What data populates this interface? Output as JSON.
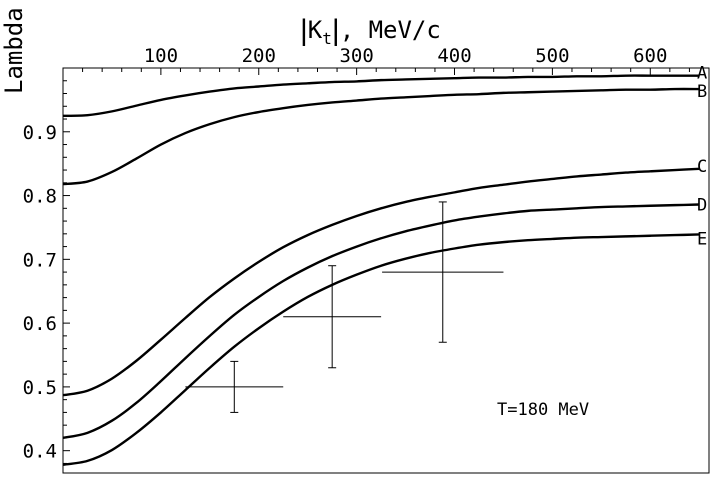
{
  "chart_data": {
    "type": "line",
    "title": "",
    "xlabel": "|K_t|, MeV/c",
    "xlabel_main": "K",
    "xlabel_sub": "t",
    "xlabel_suffix": ", MeV/c",
    "ylabel": "Lambda",
    "xlim": [
      0,
      660
    ],
    "ylim": [
      0.365,
      1.0
    ],
    "xticks": [
      100,
      200,
      300,
      400,
      500,
      600
    ],
    "xtick_labels": [
      "100",
      "200",
      "300",
      "400",
      "500",
      "600"
    ],
    "yticks": [
      0.4,
      0.5,
      0.6,
      0.7,
      0.8,
      0.9
    ],
    "ytick_labels": [
      "0.4",
      "0.5",
      "0.6",
      "0.7",
      "0.8",
      "0.9"
    ],
    "x_axis_position": "top",
    "grid": false,
    "legend": "curve labels at right end",
    "annotation": "T=180 MeV",
    "x": [
      0,
      25,
      50,
      75,
      100,
      125,
      150,
      175,
      200,
      225,
      250,
      275,
      300,
      325,
      350,
      375,
      400,
      425,
      450,
      475,
      500,
      525,
      550,
      575,
      600,
      625,
      650
    ],
    "series": [
      {
        "name": "A",
        "values": [
          0.925,
          0.926,
          0.932,
          0.941,
          0.95,
          0.957,
          0.963,
          0.968,
          0.971,
          0.974,
          0.976,
          0.978,
          0.979,
          0.981,
          0.982,
          0.983,
          0.984,
          0.985,
          0.985,
          0.986,
          0.986,
          0.987,
          0.987,
          0.988,
          0.988,
          0.988,
          0.988
        ]
      },
      {
        "name": "B",
        "values": [
          0.818,
          0.822,
          0.837,
          0.858,
          0.88,
          0.898,
          0.912,
          0.923,
          0.931,
          0.937,
          0.942,
          0.946,
          0.949,
          0.952,
          0.954,
          0.956,
          0.958,
          0.959,
          0.961,
          0.962,
          0.963,
          0.964,
          0.965,
          0.966,
          0.966,
          0.967,
          0.967
        ]
      },
      {
        "name": "C",
        "values": [
          0.487,
          0.494,
          0.513,
          0.541,
          0.574,
          0.608,
          0.641,
          0.67,
          0.696,
          0.719,
          0.738,
          0.754,
          0.768,
          0.78,
          0.79,
          0.798,
          0.805,
          0.812,
          0.817,
          0.822,
          0.826,
          0.83,
          0.833,
          0.836,
          0.838,
          0.84,
          0.842
        ]
      },
      {
        "name": "D",
        "values": [
          0.42,
          0.428,
          0.447,
          0.475,
          0.509,
          0.545,
          0.58,
          0.613,
          0.641,
          0.666,
          0.687,
          0.705,
          0.72,
          0.733,
          0.744,
          0.753,
          0.761,
          0.767,
          0.772,
          0.776,
          0.778,
          0.78,
          0.782,
          0.783,
          0.784,
          0.785,
          0.786
        ]
      },
      {
        "name": "E",
        "values": [
          0.378,
          0.384,
          0.401,
          0.428,
          0.46,
          0.495,
          0.53,
          0.563,
          0.592,
          0.618,
          0.641,
          0.66,
          0.676,
          0.69,
          0.701,
          0.71,
          0.717,
          0.723,
          0.727,
          0.73,
          0.732,
          0.734,
          0.735,
          0.736,
          0.737,
          0.738,
          0.739
        ]
      }
    ],
    "data_points": [
      {
        "x": 175,
        "y": 0.5,
        "x_err": 50,
        "y_err_low": 0.04,
        "y_err_high": 0.04
      },
      {
        "x": 275,
        "y": 0.61,
        "x_err": 50,
        "y_err_low": 0.08,
        "y_err_high": 0.08
      },
      {
        "x": 388,
        "y": 0.68,
        "x_err": 62,
        "y_err_low": 0.11,
        "y_err_high": 0.11
      }
    ]
  }
}
